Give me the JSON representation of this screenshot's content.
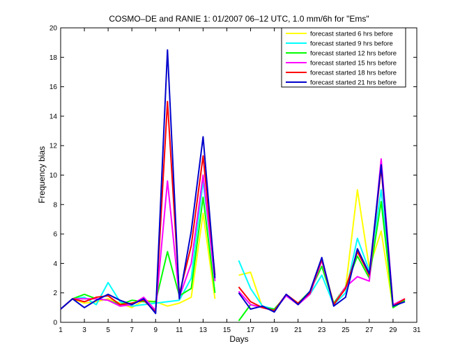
{
  "chart_data": {
    "type": "line",
    "title": "COSMO–DE and RANIE 1: 01/2007 06–12 UTC, 1.0 mm/6h for \"Ems\"",
    "xlabel": "Days",
    "ylabel": "Frequency bias",
    "xlim": [
      1,
      31
    ],
    "ylim": [
      0,
      20
    ],
    "x_ticks": [
      "1",
      "3",
      "5",
      "7",
      "9",
      "11",
      "13",
      "15",
      "17",
      "19",
      "21",
      "23",
      "25",
      "27",
      "29",
      "31"
    ],
    "y_ticks": [
      "0",
      "2",
      "4",
      "6",
      "8",
      "10",
      "12",
      "14",
      "16",
      "18",
      "20"
    ],
    "grid": false,
    "legend_position": "top-right",
    "series": [
      {
        "name": "forecast started 6 hrs before",
        "color": "#ffff00",
        "values": [
          0.9,
          1.6,
          1.3,
          1.4,
          1.6,
          1.3,
          1.0,
          1.5,
          1.4,
          1.1,
          1.3,
          1.7,
          7.4,
          1.6,
          null,
          3.2,
          3.4,
          1.0,
          0.9,
          1.8,
          1.3,
          2.0,
          4.2,
          1.3,
          2.3,
          9.0,
          3.7,
          6.2,
          1.0,
          1.5
        ]
      },
      {
        "name": "forecast started 9 hrs before",
        "color": "#00ffff",
        "values": [
          0.9,
          1.6,
          1.7,
          1.2,
          2.7,
          1.4,
          1.1,
          1.2,
          1.3,
          1.4,
          1.5,
          3.0,
          9.6,
          2.8,
          null,
          4.2,
          2.3,
          1.1,
          0.9,
          1.8,
          1.3,
          1.9,
          3.2,
          1.2,
          2.0,
          5.7,
          3.5,
          9.0,
          1.0,
          1.6
        ]
      },
      {
        "name": "forecast started 12 hrs before",
        "color": "#00ff00",
        "values": [
          0.9,
          1.6,
          1.9,
          1.6,
          1.5,
          1.2,
          1.5,
          1.4,
          1.4,
          4.8,
          1.8,
          2.3,
          8.5,
          2.0,
          null,
          0.1,
          1.2,
          1.0,
          0.9,
          1.8,
          1.3,
          2.1,
          3.8,
          1.3,
          2.4,
          4.5,
          3.0,
          8.2,
          1.0,
          1.5
        ]
      },
      {
        "name": "forecast started 15 hrs before",
        "color": "#ff00ff",
        "values": [
          0.9,
          1.6,
          1.6,
          1.6,
          1.5,
          1.1,
          1.2,
          1.7,
          0.8,
          9.6,
          1.7,
          4.0,
          10.0,
          2.8,
          null,
          2.1,
          1.2,
          1.0,
          0.8,
          1.8,
          1.2,
          1.9,
          4.2,
          1.2,
          2.4,
          3.1,
          2.8,
          11.1,
          1.2,
          1.6
        ]
      },
      {
        "name": "forecast started 18 hrs before",
        "color": "#ff0000",
        "values": [
          0.9,
          1.6,
          1.4,
          1.7,
          1.8,
          1.2,
          1.3,
          1.5,
          0.7,
          15.0,
          1.9,
          5.2,
          11.3,
          3.2,
          null,
          2.4,
          1.4,
          1.0,
          0.8,
          1.9,
          1.3,
          2.0,
          4.3,
          1.2,
          2.3,
          4.8,
          3.2,
          10.5,
          1.1,
          1.6
        ]
      },
      {
        "name": "forecast started 21 hrs before",
        "color": "#0000cc",
        "values": [
          0.9,
          1.6,
          1.0,
          1.5,
          1.9,
          1.5,
          1.2,
          1.6,
          0.6,
          18.5,
          1.6,
          6.2,
          12.6,
          3.0,
          null,
          2.0,
          0.9,
          1.1,
          0.7,
          1.9,
          1.2,
          2.1,
          4.4,
          1.1,
          1.7,
          5.0,
          3.3,
          10.7,
          1.1,
          1.4
        ]
      }
    ]
  }
}
